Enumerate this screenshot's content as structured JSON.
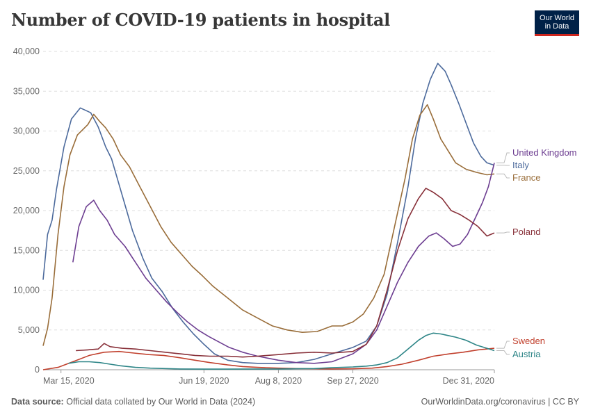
{
  "header": {
    "title": "Number of COVID-19 patients in hospital",
    "logo_line1": "Our World",
    "logo_line2": "in Data"
  },
  "footer": {
    "source_label": "Data source:",
    "source_text": "Official data collated by Our World in Data (2024)",
    "url": "OurWorldinData.org/coronavirus | CC BY"
  },
  "colors": {
    "United Kingdom": "#6d3e91",
    "Italy": "#4c6a9c",
    "France": "#996d39",
    "Poland": "#883039",
    "Sweden": "#c15065",
    "Austria": "#2d8587"
  },
  "chart_data": {
    "type": "line",
    "title": "Number of COVID-19 patients in hospital",
    "xlabel": "",
    "ylabel": "",
    "x_ticks": [
      "Mar 15, 2020",
      "Jun 19, 2020",
      "Aug 8, 2020",
      "Sep 27, 2020",
      "Dec 31, 2020"
    ],
    "y_ticks": [
      "0",
      "5,000",
      "10,000",
      "15,000",
      "20,000",
      "25,000",
      "30,000",
      "35,000",
      "40,000"
    ],
    "ylim": [
      0,
      40000
    ],
    "xlim": [
      "2020-03-03",
      "2020-12-31"
    ],
    "grid": "horizontal dashed",
    "legend": "right, labels at line ends",
    "series": [
      {
        "name": "Italy",
        "color": "#4c6a9c",
        "points": [
          [
            "2020-03-03",
            11300
          ],
          [
            "2020-03-06",
            17000
          ],
          [
            "2020-03-09",
            18800
          ],
          [
            "2020-03-12",
            22700
          ],
          [
            "2020-03-17",
            28000
          ],
          [
            "2020-03-22",
            31500
          ],
          [
            "2020-03-28",
            32900
          ],
          [
            "2020-04-04",
            32300
          ],
          [
            "2020-04-09",
            30500
          ],
          [
            "2020-04-14",
            28000
          ],
          [
            "2020-04-18",
            26500
          ],
          [
            "2020-04-25",
            22000
          ],
          [
            "2020-05-02",
            17500
          ],
          [
            "2020-05-09",
            14000
          ],
          [
            "2020-05-15",
            11500
          ],
          [
            "2020-05-22",
            9800
          ],
          [
            "2020-05-29",
            7700
          ],
          [
            "2020-06-05",
            6000
          ],
          [
            "2020-06-12",
            4500
          ],
          [
            "2020-06-19",
            3200
          ],
          [
            "2020-06-26",
            2000
          ],
          [
            "2020-07-05",
            1200
          ],
          [
            "2020-07-15",
            900
          ],
          [
            "2020-07-25",
            800
          ],
          [
            "2020-08-08",
            800
          ],
          [
            "2020-08-20",
            900
          ],
          [
            "2020-09-01",
            1300
          ],
          [
            "2020-09-13",
            2000
          ],
          [
            "2020-09-27",
            2800
          ],
          [
            "2020-10-06",
            3600
          ],
          [
            "2020-10-13",
            5500
          ],
          [
            "2020-10-20",
            9500
          ],
          [
            "2020-10-27",
            16000
          ],
          [
            "2020-11-03",
            23000
          ],
          [
            "2020-11-08",
            29000
          ],
          [
            "2020-11-13",
            33500
          ],
          [
            "2020-11-18",
            36500
          ],
          [
            "2020-11-23",
            38500
          ],
          [
            "2020-11-28",
            37500
          ],
          [
            "2020-12-02",
            35800
          ],
          [
            "2020-12-07",
            33500
          ],
          [
            "2020-12-12",
            31000
          ],
          [
            "2020-12-17",
            28500
          ],
          [
            "2020-12-22",
            26800
          ],
          [
            "2020-12-26",
            26000
          ],
          [
            "2020-12-31",
            25700
          ]
        ]
      },
      {
        "name": "France",
        "color": "#996d39",
        "points": [
          [
            "2020-03-03",
            3000
          ],
          [
            "2020-03-06",
            5200
          ],
          [
            "2020-03-09",
            9000
          ],
          [
            "2020-03-13",
            17000
          ],
          [
            "2020-03-17",
            23000
          ],
          [
            "2020-03-21",
            27000
          ],
          [
            "2020-03-26",
            29500
          ],
          [
            "2020-04-02",
            30800
          ],
          [
            "2020-04-06",
            32100
          ],
          [
            "2020-04-10",
            31200
          ],
          [
            "2020-04-14",
            30400
          ],
          [
            "2020-04-19",
            29000
          ],
          [
            "2020-04-24",
            27000
          ],
          [
            "2020-04-30",
            25500
          ],
          [
            "2020-05-07",
            23000
          ],
          [
            "2020-05-14",
            20500
          ],
          [
            "2020-05-21",
            18000
          ],
          [
            "2020-05-28",
            16000
          ],
          [
            "2020-06-04",
            14500
          ],
          [
            "2020-06-11",
            13000
          ],
          [
            "2020-06-18",
            11800
          ],
          [
            "2020-06-25",
            10500
          ],
          [
            "2020-07-05",
            9000
          ],
          [
            "2020-07-15",
            7500
          ],
          [
            "2020-07-25",
            6500
          ],
          [
            "2020-08-04",
            5500
          ],
          [
            "2020-08-14",
            5000
          ],
          [
            "2020-08-24",
            4700
          ],
          [
            "2020-09-03",
            4800
          ],
          [
            "2020-09-13",
            5500
          ],
          [
            "2020-09-20",
            5500
          ],
          [
            "2020-09-27",
            6000
          ],
          [
            "2020-10-04",
            7000
          ],
          [
            "2020-10-11",
            9000
          ],
          [
            "2020-10-18",
            12000
          ],
          [
            "2020-10-25",
            18000
          ],
          [
            "2020-11-01",
            24000
          ],
          [
            "2020-11-06",
            29000
          ],
          [
            "2020-11-11",
            32000
          ],
          [
            "2020-11-16",
            33300
          ],
          [
            "2020-11-20",
            31500
          ],
          [
            "2020-11-25",
            29000
          ],
          [
            "2020-11-30",
            27500
          ],
          [
            "2020-12-05",
            26000
          ],
          [
            "2020-12-12",
            25200
          ],
          [
            "2020-12-19",
            24800
          ],
          [
            "2020-12-26",
            24500
          ],
          [
            "2020-12-31",
            24600
          ]
        ]
      },
      {
        "name": "United Kingdom",
        "color": "#6d3e91",
        "points": [
          [
            "2020-03-23",
            13500
          ],
          [
            "2020-03-27",
            18000
          ],
          [
            "2020-04-01",
            20500
          ],
          [
            "2020-04-06",
            21300
          ],
          [
            "2020-04-10",
            20000
          ],
          [
            "2020-04-15",
            18800
          ],
          [
            "2020-04-20",
            17000
          ],
          [
            "2020-04-27",
            15500
          ],
          [
            "2020-05-04",
            13500
          ],
          [
            "2020-05-11",
            11500
          ],
          [
            "2020-05-18",
            10000
          ],
          [
            "2020-05-25",
            8500
          ],
          [
            "2020-06-01",
            7200
          ],
          [
            "2020-06-08",
            6000
          ],
          [
            "2020-06-15",
            5000
          ],
          [
            "2020-06-22",
            4200
          ],
          [
            "2020-06-29",
            3500
          ],
          [
            "2020-07-06",
            2800
          ],
          [
            "2020-07-15",
            2200
          ],
          [
            "2020-07-25",
            1700
          ],
          [
            "2020-08-08",
            1200
          ],
          [
            "2020-08-20",
            900
          ],
          [
            "2020-09-01",
            800
          ],
          [
            "2020-09-13",
            1000
          ],
          [
            "2020-09-27",
            2000
          ],
          [
            "2020-10-06",
            3200
          ],
          [
            "2020-10-13",
            5000
          ],
          [
            "2020-10-20",
            8000
          ],
          [
            "2020-10-27",
            11000
          ],
          [
            "2020-11-03",
            13500
          ],
          [
            "2020-11-10",
            15500
          ],
          [
            "2020-11-17",
            16800
          ],
          [
            "2020-11-22",
            17200
          ],
          [
            "2020-11-27",
            16500
          ],
          [
            "2020-12-03",
            15500
          ],
          [
            "2020-12-08",
            15800
          ],
          [
            "2020-12-13",
            17000
          ],
          [
            "2020-12-18",
            19000
          ],
          [
            "2020-12-23",
            21000
          ],
          [
            "2020-12-27",
            23000
          ],
          [
            "2020-12-31",
            26000
          ]
        ]
      },
      {
        "name": "Poland",
        "color": "#883039",
        "points": [
          [
            "2020-03-25",
            2400
          ],
          [
            "2020-04-02",
            2500
          ],
          [
            "2020-04-09",
            2600
          ],
          [
            "2020-04-13",
            3300
          ],
          [
            "2020-04-17",
            2900
          ],
          [
            "2020-04-25",
            2700
          ],
          [
            "2020-05-04",
            2600
          ],
          [
            "2020-05-14",
            2400
          ],
          [
            "2020-05-24",
            2200
          ],
          [
            "2020-06-03",
            2000
          ],
          [
            "2020-06-13",
            1800
          ],
          [
            "2020-06-23",
            1700
          ],
          [
            "2020-07-05",
            1700
          ],
          [
            "2020-07-15",
            1600
          ],
          [
            "2020-07-25",
            1700
          ],
          [
            "2020-08-08",
            1900
          ],
          [
            "2020-08-20",
            2100
          ],
          [
            "2020-09-01",
            2200
          ],
          [
            "2020-09-13",
            2100
          ],
          [
            "2020-09-27",
            2300
          ],
          [
            "2020-10-06",
            3200
          ],
          [
            "2020-10-13",
            5500
          ],
          [
            "2020-10-20",
            10000
          ],
          [
            "2020-10-27",
            15000
          ],
          [
            "2020-11-03",
            19000
          ],
          [
            "2020-11-10",
            21500
          ],
          [
            "2020-11-15",
            22800
          ],
          [
            "2020-11-20",
            22300
          ],
          [
            "2020-11-26",
            21500
          ],
          [
            "2020-12-02",
            20000
          ],
          [
            "2020-12-08",
            19500
          ],
          [
            "2020-12-14",
            18800
          ],
          [
            "2020-12-20",
            18000
          ],
          [
            "2020-12-26",
            16800
          ],
          [
            "2020-12-31",
            17200
          ]
        ]
      },
      {
        "name": "Sweden",
        "color": "#c1402d",
        "points": [
          [
            "2020-03-03",
            0
          ],
          [
            "2020-03-13",
            300
          ],
          [
            "2020-03-23",
            1000
          ],
          [
            "2020-04-03",
            1800
          ],
          [
            "2020-04-13",
            2200
          ],
          [
            "2020-04-23",
            2300
          ],
          [
            "2020-05-03",
            2100
          ],
          [
            "2020-05-13",
            1900
          ],
          [
            "2020-05-23",
            1800
          ],
          [
            "2020-06-03",
            1500
          ],
          [
            "2020-06-13",
            1200
          ],
          [
            "2020-06-23",
            900
          ],
          [
            "2020-07-05",
            600
          ],
          [
            "2020-07-15",
            400
          ],
          [
            "2020-07-25",
            300
          ],
          [
            "2020-08-08",
            200
          ],
          [
            "2020-08-20",
            150
          ],
          [
            "2020-09-01",
            120
          ],
          [
            "2020-09-13",
            100
          ],
          [
            "2020-09-27",
            120
          ],
          [
            "2020-10-10",
            200
          ],
          [
            "2020-10-20",
            400
          ],
          [
            "2020-10-30",
            700
          ],
          [
            "2020-11-10",
            1200
          ],
          [
            "2020-11-20",
            1700
          ],
          [
            "2020-12-01",
            2000
          ],
          [
            "2020-12-10",
            2200
          ],
          [
            "2020-12-20",
            2500
          ],
          [
            "2020-12-31",
            2700
          ]
        ]
      },
      {
        "name": "Austria",
        "color": "#2d8587",
        "points": [
          [
            "2020-03-20",
            800
          ],
          [
            "2020-03-27",
            1000
          ],
          [
            "2020-04-03",
            1000
          ],
          [
            "2020-04-10",
            900
          ],
          [
            "2020-04-17",
            700
          ],
          [
            "2020-04-24",
            500
          ],
          [
            "2020-05-04",
            300
          ],
          [
            "2020-05-14",
            200
          ],
          [
            "2020-05-24",
            150
          ],
          [
            "2020-06-03",
            100
          ],
          [
            "2020-06-19",
            80
          ],
          [
            "2020-07-05",
            80
          ],
          [
            "2020-07-25",
            100
          ],
          [
            "2020-08-08",
            100
          ],
          [
            "2020-08-20",
            120
          ],
          [
            "2020-09-01",
            150
          ],
          [
            "2020-09-13",
            250
          ],
          [
            "2020-09-27",
            350
          ],
          [
            "2020-10-06",
            450
          ],
          [
            "2020-10-13",
            600
          ],
          [
            "2020-10-20",
            900
          ],
          [
            "2020-10-27",
            1500
          ],
          [
            "2020-11-03",
            2600
          ],
          [
            "2020-11-10",
            3700
          ],
          [
            "2020-11-15",
            4300
          ],
          [
            "2020-11-20",
            4600
          ],
          [
            "2020-11-25",
            4500
          ],
          [
            "2020-11-30",
            4300
          ],
          [
            "2020-12-05",
            4100
          ],
          [
            "2020-12-12",
            3700
          ],
          [
            "2020-12-19",
            3100
          ],
          [
            "2020-12-26",
            2700
          ],
          [
            "2020-12-31",
            2400
          ]
        ]
      }
    ],
    "legend_items": [
      {
        "name": "United Kingdom",
        "color": "#6d3e91"
      },
      {
        "name": "Italy",
        "color": "#4c6a9c"
      },
      {
        "name": "France",
        "color": "#996d39"
      },
      {
        "name": "Poland",
        "color": "#883039"
      },
      {
        "name": "Sweden",
        "color": "#c1402d"
      },
      {
        "name": "Austria",
        "color": "#2d8587"
      }
    ]
  }
}
